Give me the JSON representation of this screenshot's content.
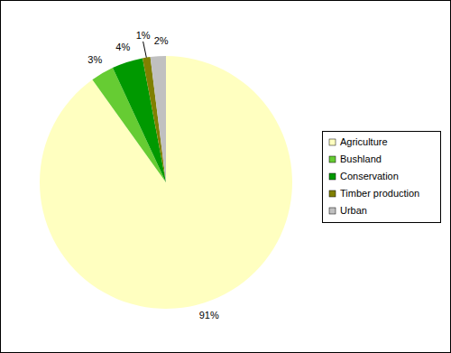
{
  "chart_data": {
    "type": "pie",
    "categories": [
      "Agriculture",
      "Bushland",
      "Conservation",
      "Timber production",
      "Urban"
    ],
    "values": [
      91,
      3,
      4,
      1,
      2
    ],
    "value_labels": [
      "91%",
      "3%",
      "4%",
      "1%",
      "2%"
    ],
    "colors": [
      "#ffffc0",
      "#66cc33",
      "#009900",
      "#808000",
      "#c0c0c0"
    ],
    "data_labels": true,
    "legend": "right"
  }
}
